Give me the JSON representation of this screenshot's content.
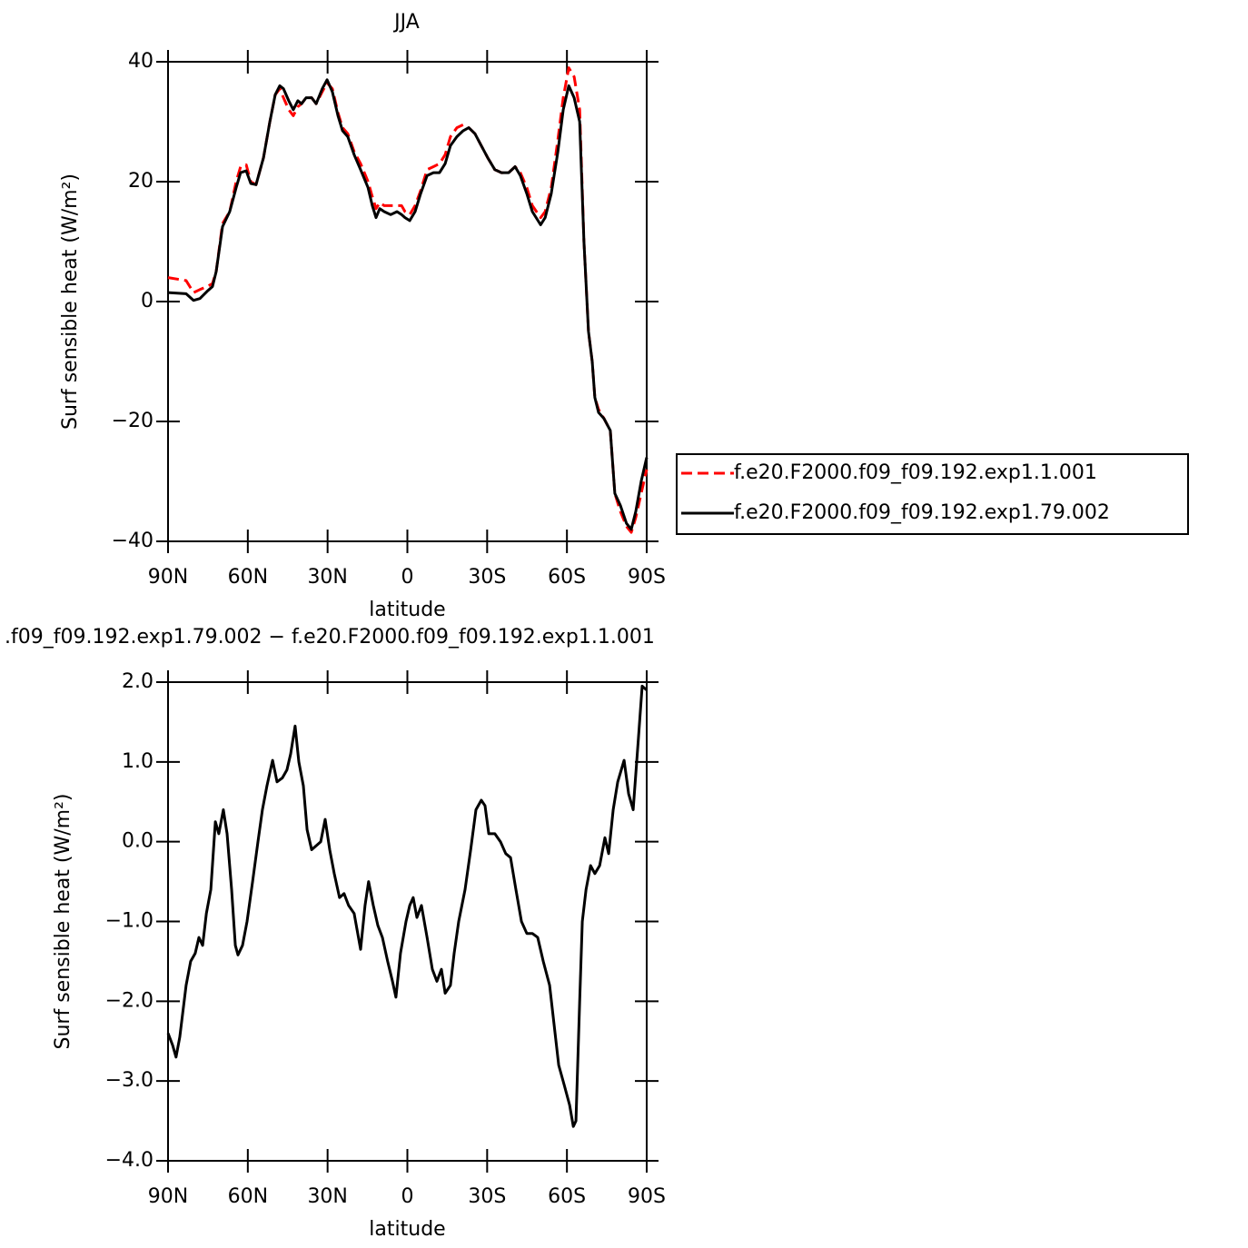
{
  "chart_data": [
    {
      "type": "line",
      "title": "JJA",
      "x_label": "latitude",
      "y_label": "Surf sensible heat (W/m²)",
      "xlim": [
        90,
        -90
      ],
      "ylim": [
        -40,
        40
      ],
      "xticks": [
        {
          "value": 90,
          "label": "90N"
        },
        {
          "value": 60,
          "label": "60N"
        },
        {
          "value": 30,
          "label": "30N"
        },
        0,
        {
          "value": -30,
          "label": "30S"
        },
        {
          "value": -60,
          "label": "60S"
        },
        {
          "value": -90,
          "label": "90S"
        }
      ],
      "yticks": [
        {
          "value": -40,
          "label": "−40"
        },
        {
          "value": -20,
          "label": "−20"
        },
        0,
        20,
        40
      ],
      "legend": "right",
      "x": [
        90,
        83.2,
        80.4,
        78,
        75.3,
        73.3,
        71.9,
        69.5,
        66.8,
        64.4,
        62.7,
        60.6,
        58.9,
        56.9,
        54.1,
        51.7,
        49.7,
        48,
        46.6,
        44.6,
        42.9,
        41.2,
        39.8,
        38.1,
        36,
        34.3,
        32,
        30.2,
        28.2,
        26.1,
        24.4,
        22.4,
        20,
        17.6,
        14.8,
        13.2,
        11.8,
        10.4,
        8.7,
        6.3,
        3.9,
        2.2,
        0.9,
        -0.9,
        -2.9,
        -5,
        -7.4,
        -9.8,
        -12.1,
        -14.2,
        -16.2,
        -18.6,
        -21,
        -23.1,
        -25.4,
        -27.8,
        -30.2,
        -32.9,
        -35.4,
        -38.1,
        -40.5,
        -42.5,
        -44.9,
        -47,
        -50.1,
        -51.8,
        -54.1,
        -56.6,
        -58.6,
        -60.7,
        -62.7,
        -64.8,
        -66.4,
        -68.1,
        -69.5,
        -70.5,
        -71.9,
        -73.9,
        -76.3,
        -78,
        -80.1,
        -82.4,
        -84.2,
        -85.9,
        -87.9,
        -90
      ],
      "series": [
        {
          "name": "f.e20.F2000.f09_f09.192.exp1.1.001",
          "color": "#ff0000",
          "dash": "dashed",
          "values": [
            4,
            3.5,
            1.5,
            2,
            2.5,
            3,
            5,
            13,
            15,
            20,
            22.5,
            22.8,
            20,
            19.5,
            24,
            30,
            34.5,
            35.5,
            34,
            32,
            31,
            32.5,
            33,
            34,
            34,
            33,
            35,
            36.5,
            35.5,
            31.5,
            29,
            28,
            25,
            23,
            20,
            17.5,
            15.5,
            16.5,
            16,
            16,
            16,
            16,
            15,
            14.5,
            16,
            18.5,
            22,
            22.5,
            23,
            24.5,
            27.5,
            29,
            29.5,
            29,
            28,
            26,
            24,
            22,
            21.5,
            21.5,
            22.5,
            21.5,
            19,
            16,
            14,
            15,
            19,
            27,
            34,
            39,
            37.5,
            32,
            10,
            -5,
            -10,
            -16,
            -18,
            -19.5,
            -21.5,
            -32,
            -35,
            -37.5,
            -38.5,
            -36,
            -32,
            -28
          ]
        },
        {
          "name": "f.e20.F2000.f09_f09.192.exp1.79.002",
          "color": "#000000",
          "dash": "solid",
          "values": [
            1.5,
            1.3,
            0.2,
            0.5,
            1.7,
            2.5,
            5,
            12.5,
            15,
            19,
            21.5,
            21.8,
            19.7,
            19.5,
            24,
            30,
            34.5,
            36,
            35.5,
            33.5,
            32,
            33.5,
            33,
            34,
            34,
            33,
            35.5,
            37,
            35,
            31,
            28.5,
            27.5,
            24.5,
            22,
            19,
            16,
            14,
            15.5,
            15,
            14.5,
            15,
            14.5,
            14,
            13.5,
            15,
            18,
            21,
            21.5,
            21.5,
            23,
            26,
            27.5,
            28.5,
            29,
            28,
            26,
            24,
            22,
            21.5,
            21.5,
            22.5,
            21,
            18,
            15,
            12.8,
            14,
            18,
            25,
            32,
            36,
            34,
            30,
            10,
            -5,
            -10,
            -16,
            -18.5,
            -19.5,
            -21.5,
            -32,
            -34,
            -37,
            -38,
            -35,
            -30,
            -26
          ]
        }
      ]
    },
    {
      "type": "line",
      "title": ".f09_f09.192.exp1.79.002 − f.e20.F2000.f09_f09.192.exp1.1.001",
      "x_label": "latitude",
      "y_label": "Surf sensible heat (W/m²)",
      "xlim": [
        90,
        -90
      ],
      "ylim": [
        -4,
        2
      ],
      "xticks": [
        {
          "value": 90,
          "label": "90N"
        },
        {
          "value": 60,
          "label": "60N"
        },
        {
          "value": 30,
          "label": "30N"
        },
        0,
        {
          "value": -30,
          "label": "30S"
        },
        {
          "value": -60,
          "label": "60S"
        },
        {
          "value": -90,
          "label": "90S"
        }
      ],
      "yticks": [
        {
          "value": -4,
          "label": "−4.0"
        },
        {
          "value": -3,
          "label": "−3.0"
        },
        {
          "value": -2,
          "label": "−2.0"
        },
        {
          "value": -1,
          "label": "−1.0"
        },
        {
          "value": 0,
          "label": "0.0"
        },
        {
          "value": 1,
          "label": "1.0"
        },
        {
          "value": 2,
          "label": "2.0"
        }
      ],
      "x": [
        90,
        88.3,
        87,
        85.6,
        83.2,
        81.5,
        79.8,
        78.4,
        77,
        75.6,
        73.9,
        72.2,
        70.9,
        69.2,
        67.8,
        66.1,
        64.7,
        63.7,
        62,
        60.3,
        58.2,
        56.2,
        54.5,
        52.8,
        50.7,
        49,
        47,
        45.3,
        43.9,
        42.2,
        40.8,
        39.1,
        37.7,
        36,
        34.3,
        32.6,
        30.9,
        29.2,
        27.5,
        25.5,
        23.8,
        22.1,
        20,
        17.6,
        15.9,
        14.6,
        12.8,
        11.1,
        9.4,
        7.4,
        5.6,
        4.3,
        2.6,
        0.5,
        -0.9,
        -2.2,
        -3.6,
        -5.3,
        -7.4,
        -9.4,
        -11.1,
        -12.8,
        -14.2,
        -16.2,
        -17.6,
        -19.3,
        -21.7,
        -23.8,
        -25.8,
        -27.8,
        -29.2,
        -30.6,
        -32.9,
        -35,
        -37,
        -38.8,
        -40.8,
        -42.9,
        -44.9,
        -47,
        -49,
        -51.1,
        -53.5,
        -55.2,
        -56.9,
        -59,
        -61,
        -62.4,
        -63.4,
        -64.8,
        -65.8,
        -67.2,
        -68.9,
        -70.5,
        -72.3,
        -74.3,
        -75.7,
        -77.4,
        -79.1,
        -81.5,
        -83.2,
        -84.9,
        -86.9,
        -88.3,
        -90
      ],
      "color": "#000000",
      "values": [
        -2.4,
        -2.55,
        -2.7,
        -2.45,
        -1.8,
        -1.5,
        -1.4,
        -1.2,
        -1.3,
        -0.9,
        -0.6,
        0.25,
        0.1,
        0.4,
        0.1,
        -0.6,
        -1.3,
        -1.42,
        -1.3,
        -1.0,
        -0.5,
        0.0,
        0.4,
        0.7,
        1.02,
        0.75,
        0.8,
        0.9,
        1.1,
        1.45,
        1.0,
        0.7,
        0.15,
        -0.1,
        -0.05,
        0.0,
        0.28,
        -0.1,
        -0.4,
        -0.7,
        -0.65,
        -0.8,
        -0.9,
        -1.35,
        -0.8,
        -0.5,
        -0.8,
        -1.05,
        -1.2,
        -1.5,
        -1.75,
        -1.95,
        -1.4,
        -1.0,
        -0.8,
        -0.7,
        -0.95,
        -0.8,
        -1.2,
        -1.6,
        -1.75,
        -1.6,
        -1.9,
        -1.8,
        -1.4,
        -1.0,
        -0.6,
        -0.1,
        0.4,
        0.52,
        0.45,
        0.1,
        0.1,
        0.0,
        -0.15,
        -0.2,
        -0.6,
        -1.0,
        -1.15,
        -1.15,
        -1.2,
        -1.5,
        -1.8,
        -2.3,
        -2.8,
        -3.05,
        -3.3,
        -3.57,
        -3.5,
        -2.0,
        -1.0,
        -0.6,
        -0.3,
        -0.4,
        -0.3,
        0.05,
        -0.15,
        0.4,
        0.75,
        1.02,
        0.6,
        0.4,
        1.3,
        1.95,
        1.9
      ]
    }
  ]
}
